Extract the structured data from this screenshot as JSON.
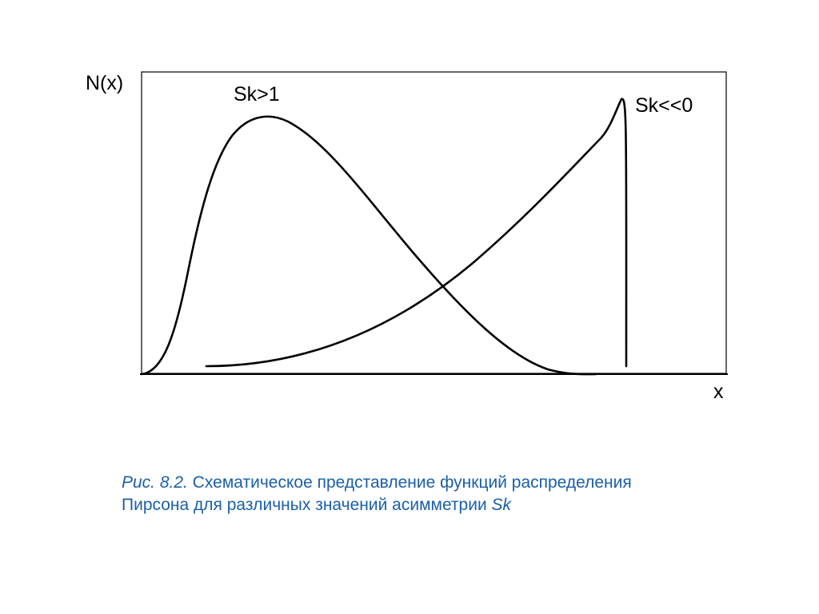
{
  "diagram": {
    "y_axis_label": "N(x)",
    "x_axis_label": "x",
    "curves": [
      {
        "label": "Sk>1"
      },
      {
        "label": "Sk<<0"
      }
    ]
  },
  "caption": {
    "prefix": "Рис. 8.2.",
    "line1": "Схематическое представление функций распределения",
    "line2": "Пирсона для различных значений асимметрии",
    "symbol": "Sk"
  },
  "colors": {
    "line": "#000000",
    "caption": "#1a5fa8"
  }
}
